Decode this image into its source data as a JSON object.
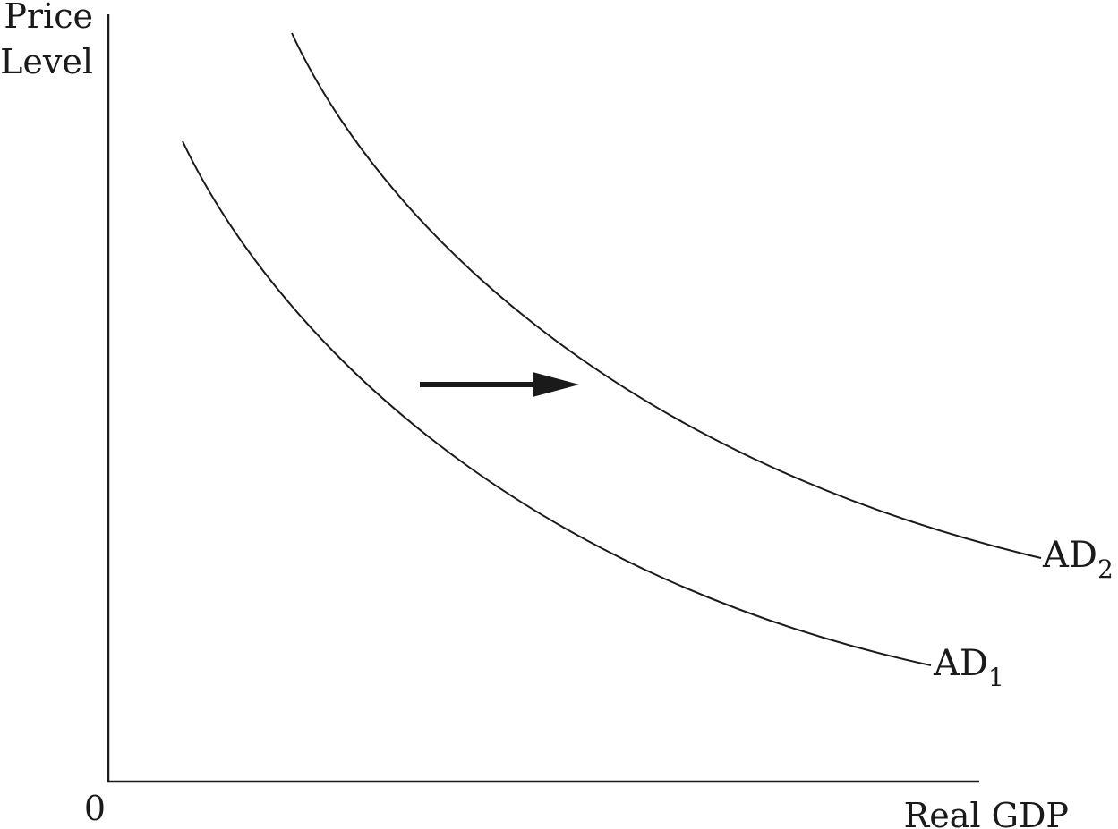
{
  "axes": {
    "y_label_line1": "Price",
    "y_label_line2": "Level",
    "x_label": "Real GDP",
    "origin_label": "0"
  },
  "curves": [
    {
      "id": "ad1",
      "label": "AD",
      "subscript": "1"
    },
    {
      "id": "ad2",
      "label": "AD",
      "subscript": "2"
    }
  ],
  "shift_arrow": {
    "direction": "right"
  },
  "colors": {
    "ink": "#1a1a1a",
    "background": "#ffffff"
  }
}
